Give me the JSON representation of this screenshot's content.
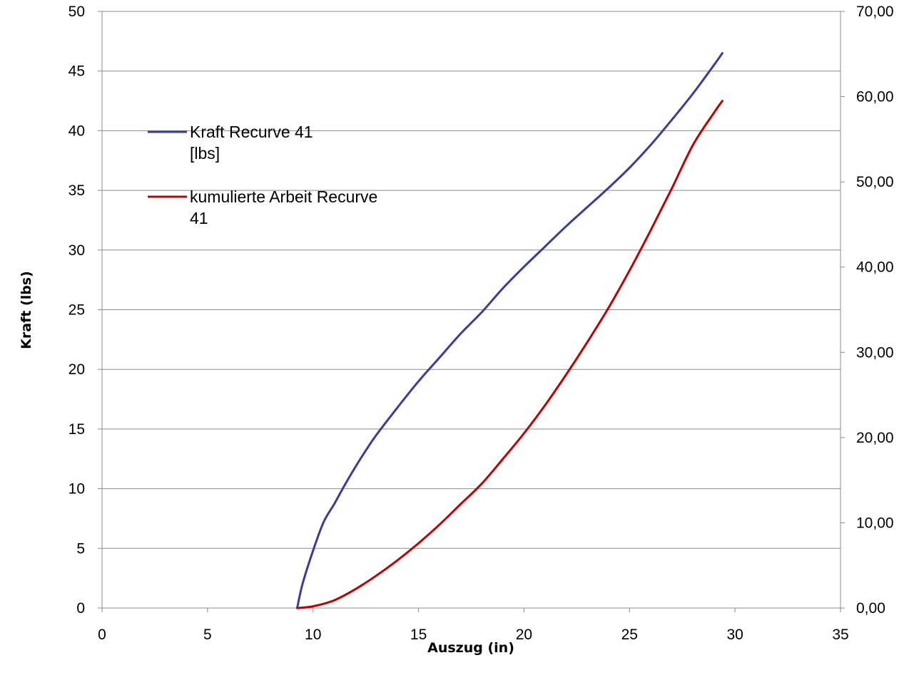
{
  "chart_data": {
    "type": "line",
    "title": "",
    "xlabel": "Auszug (in)",
    "ylabel": "Kraft (lbs)",
    "y2label": "",
    "xlim": [
      0,
      35
    ],
    "ylim": [
      0,
      50
    ],
    "y2lim": [
      0,
      70
    ],
    "x_ticks": [
      "0",
      "5",
      "10",
      "15",
      "20",
      "25",
      "30",
      "35"
    ],
    "y_ticks": [
      "0",
      "5",
      "10",
      "15",
      "20",
      "25",
      "30",
      "35",
      "40",
      "45",
      "50"
    ],
    "y2_ticks": [
      "0,00",
      "10,00",
      "20,00",
      "30,00",
      "40,00",
      "50,00",
      "60,00",
      "70,00"
    ],
    "grid": true,
    "legend_position": "upper-left",
    "series": [
      {
        "name": "Kraft Recurve 41 [lbs]",
        "legend_lines": [
          "Kraft Recurve 41",
          "[lbs]"
        ],
        "axis": "left",
        "color": "#3b3b9c",
        "x": [
          9.25,
          9.5,
          10,
          10.5,
          11,
          11.5,
          12,
          12.5,
          13,
          14,
          15,
          16,
          17,
          18,
          19,
          20,
          21,
          22,
          23,
          24,
          25,
          26,
          27,
          28,
          29,
          29.4
        ],
        "y": [
          0,
          2,
          4.8,
          7.2,
          8.7,
          10.3,
          11.8,
          13.2,
          14.5,
          16.8,
          19,
          21,
          23,
          24.8,
          26.8,
          28.6,
          30.3,
          32,
          33.6,
          35.2,
          36.9,
          38.8,
          40.9,
          43.1,
          45.5,
          46.5
        ]
      },
      {
        "name": "kumulierte Arbeit Recurve 41",
        "legend_lines": [
          "kumulierte Arbeit Recurve",
          "41"
        ],
        "axis": "right",
        "color": "#c00000",
        "x": [
          9.25,
          10,
          11,
          12,
          13,
          14,
          15,
          16,
          17,
          18,
          19,
          20,
          21,
          22,
          23,
          24,
          25,
          26,
          27,
          28,
          29,
          29.4
        ],
        "y": [
          0,
          0.2,
          0.9,
          2.2,
          3.8,
          5.6,
          7.6,
          9.8,
          12.2,
          14.6,
          17.5,
          20.5,
          23.8,
          27.4,
          31.2,
          35.2,
          39.6,
          44.3,
          49.2,
          54.3,
          58.1,
          59.5
        ]
      }
    ]
  }
}
